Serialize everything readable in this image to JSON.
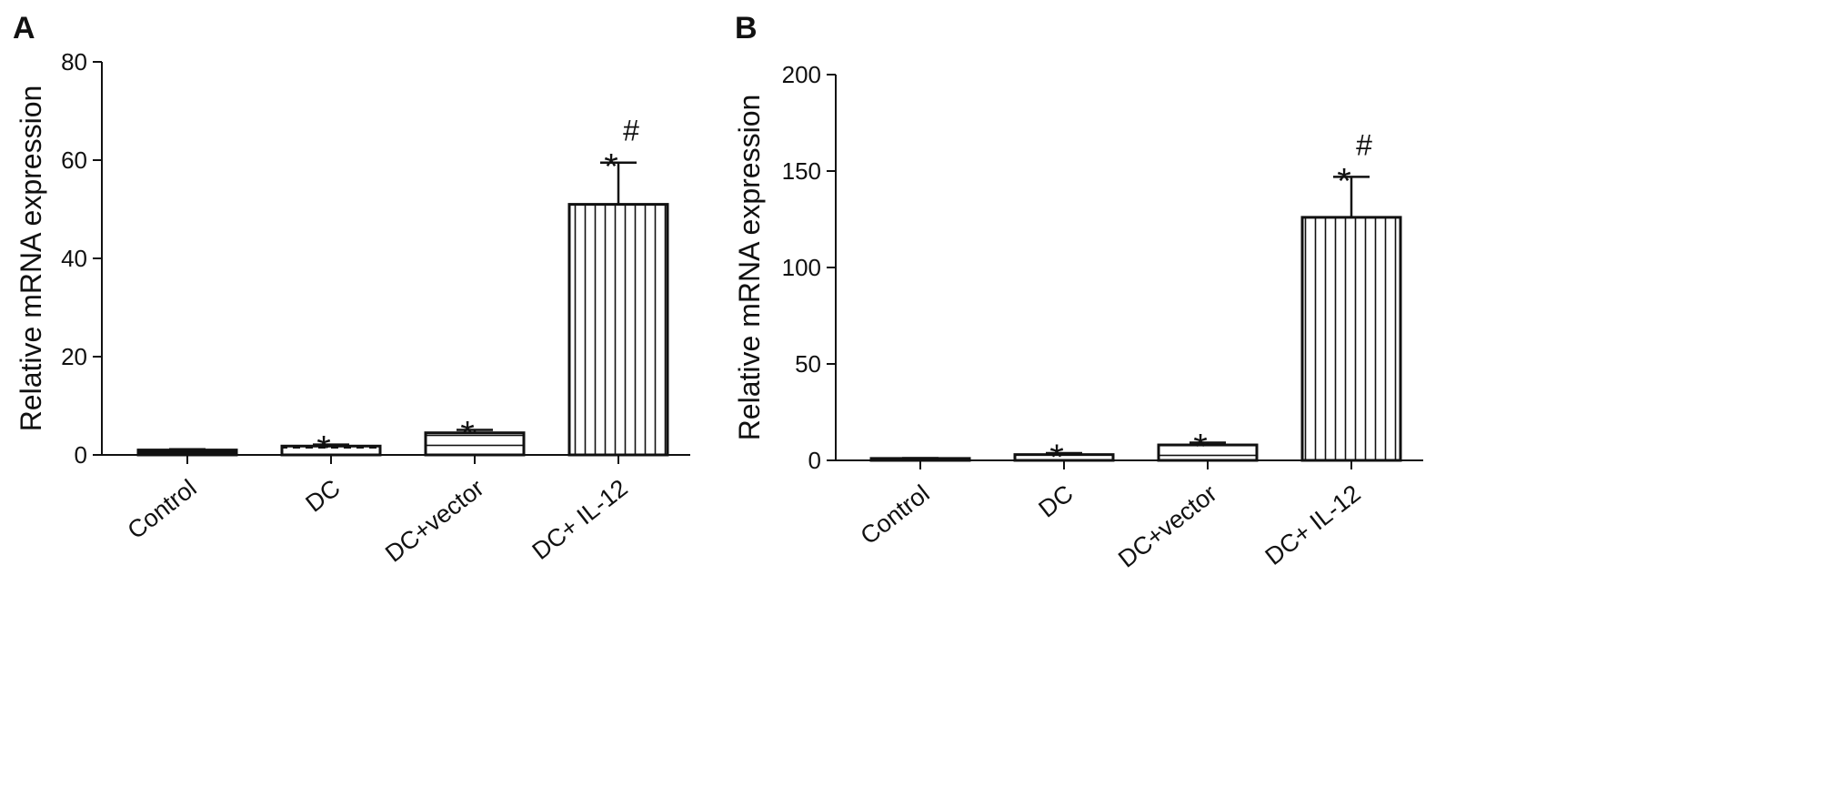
{
  "charts": [
    {
      "panel_label": "A",
      "chart_data": {
        "type": "bar",
        "categories": [
          "Control",
          "DC",
          "DC+vector",
          "DC+ IL-12"
        ],
        "values": [
          1,
          1.8,
          4.5,
          51
        ],
        "errors": [
          0.15,
          0.3,
          0.6,
          8.5
        ],
        "annotations": [
          "",
          "*",
          "*",
          "*#"
        ],
        "patterns": [
          "solid",
          "dashed-horizontal",
          "horizontal-lines",
          "vertical-lines"
        ],
        "ylabel": "Relative mRNA expression",
        "xlabel": "",
        "ylim": [
          0,
          80
        ],
        "yticks": [
          0,
          20,
          40,
          60,
          80
        ],
        "grid": false
      }
    },
    {
      "panel_label": "B",
      "chart_data": {
        "type": "bar",
        "categories": [
          "Control",
          "DC",
          "DC+vector",
          "DC+ IL-12"
        ],
        "values": [
          1,
          3,
          8,
          126
        ],
        "errors": [
          0.2,
          0.8,
          1.2,
          21
        ],
        "annotations": [
          "",
          "*",
          "*",
          "*#"
        ],
        "patterns": [
          "solid",
          "dashed-horizontal",
          "horizontal-lines",
          "vertical-lines"
        ],
        "ylabel": "Relative mRNA expression",
        "xlabel": "",
        "ylim": [
          0,
          200
        ],
        "yticks": [
          0,
          50,
          100,
          150,
          200
        ],
        "grid": false
      }
    }
  ],
  "style": {
    "bar_stroke": "#111111",
    "fill": "#ffffff",
    "text_color": "#111111"
  }
}
